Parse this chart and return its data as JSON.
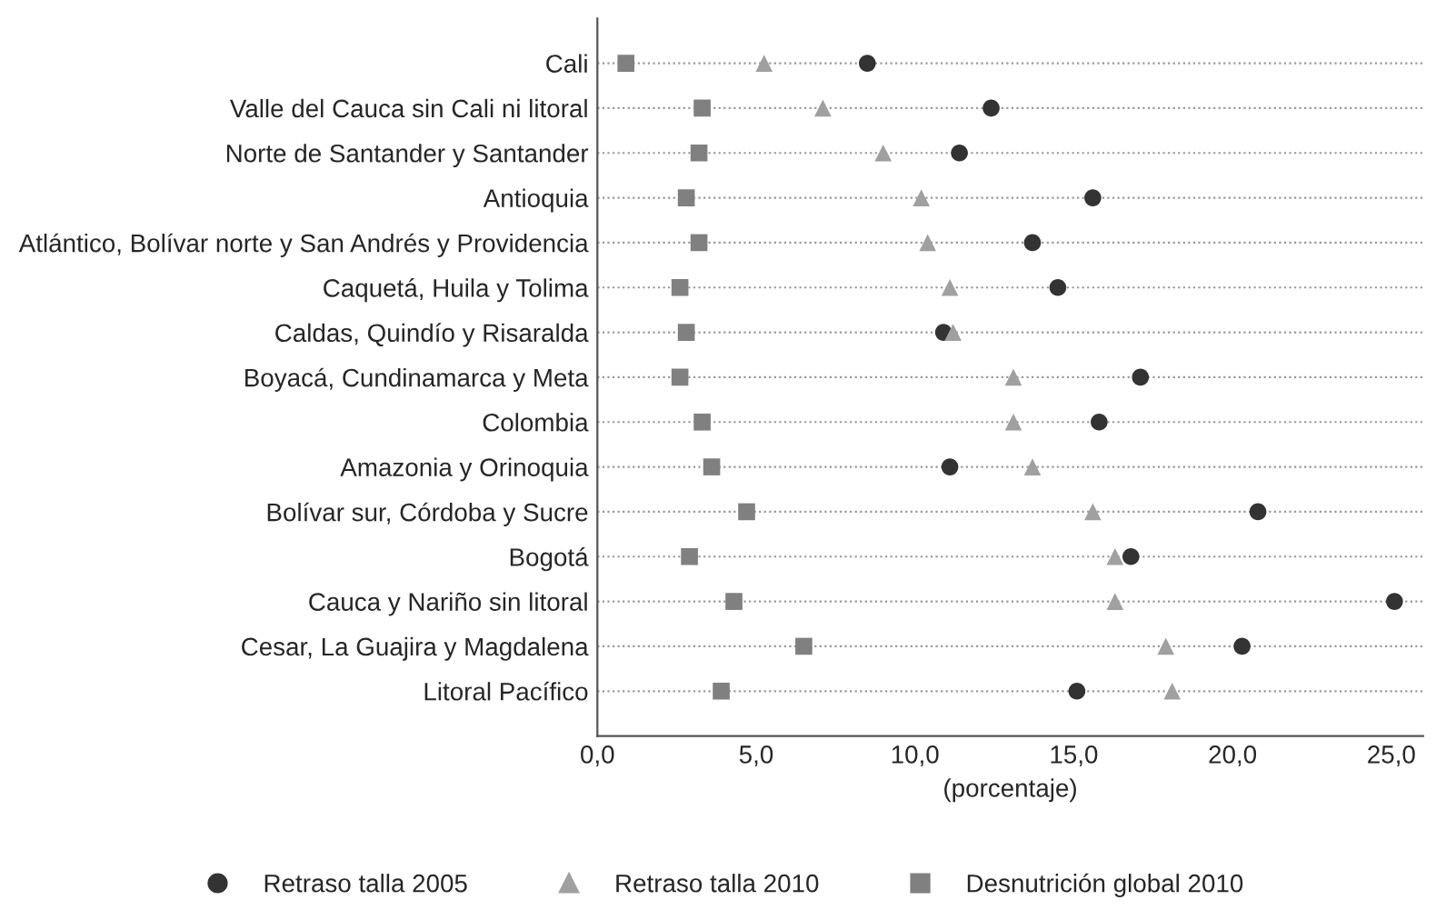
{
  "chart_data": {
    "type": "scatter",
    "orientation": "horizontal",
    "xlabel": "(porcentaje)",
    "categories": [
      "Cali",
      "Valle del Cauca sin Cali ni litoral",
      "Norte de Santander y Santander",
      "Antioquia",
      "Atlántico, Bolívar norte y San Andrés y Providencia",
      "Caquetá, Huila y Tolima",
      "Caldas, Quindío y Risaralda",
      "Boyacá, Cundinamarca y Meta",
      "Colombia",
      "Amazonia y Orinoquia",
      "Bolívar sur, Córdoba y Sucre",
      "Bogotá",
      "Cauca y Nariño sin litoral",
      "Cesar, La Guajira y Magdalena",
      "Litoral Pacífico"
    ],
    "series": [
      {
        "name": "Retraso talla 2005",
        "color": "#333333",
        "marker": "circle",
        "values": [
          8.5,
          12.4,
          11.4,
          15.6,
          13.7,
          14.5,
          10.9,
          17.1,
          15.8,
          11.1,
          20.8,
          16.8,
          25.1,
          20.3,
          15.1
        ]
      },
      {
        "name": "Retraso talla 2010",
        "color": "#a0a0a0",
        "marker": "triangle",
        "values": [
          5.25,
          7.1,
          9.0,
          10.2,
          10.4,
          11.1,
          11.2,
          13.1,
          13.1,
          13.7,
          15.6,
          16.3,
          16.3,
          17.9,
          18.1
        ]
      },
      {
        "name": "Desnutrición global 2010",
        "color": "#808080",
        "marker": "square",
        "values": [
          0.9,
          3.3,
          3.2,
          2.8,
          3.2,
          2.6,
          2.8,
          2.6,
          3.3,
          3.6,
          4.7,
          2.9,
          4.3,
          6.5,
          3.9
        ]
      }
    ],
    "xlim": [
      0,
      26
    ],
    "xticks": [
      {
        "value": 0,
        "label": "0,0"
      },
      {
        "value": 5,
        "label": "5,0"
      },
      {
        "value": 10,
        "label": "10,0"
      },
      {
        "value": 15,
        "label": "15,0"
      },
      {
        "value": 20,
        "label": "20,0"
      },
      {
        "value": 25,
        "label": "25,0"
      }
    ],
    "grid": "y",
    "legend": "bottom"
  }
}
